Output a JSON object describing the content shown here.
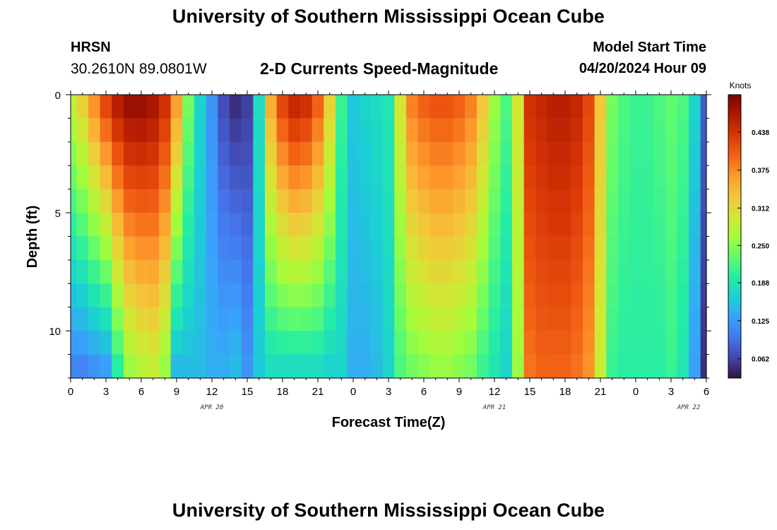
{
  "header": {
    "main_title": "University of Southern Mississippi Ocean Cube",
    "station": "HRSN",
    "coords": "30.2610N  89.0801W",
    "subtitle": "2-D Currents Speed-Magnitude",
    "model_label": "Model Start Time",
    "model_time": "04/20/2024 Hour 09"
  },
  "footer": {
    "main_title": "University of Southern Mississippi Ocean Cube"
  },
  "chart_data": {
    "type": "heatmap",
    "title": "2-D Currents Speed-Magnitude",
    "xlabel": "Forecast Time(Z)",
    "ylabel": "Depth (ft)",
    "x_range_hours": [
      0,
      54
    ],
    "y_range_ft": [
      0,
      12
    ],
    "x_ticks": [
      {
        "hour": 0,
        "label": "0"
      },
      {
        "hour": 3,
        "label": "3"
      },
      {
        "hour": 6,
        "label": "6"
      },
      {
        "hour": 9,
        "label": "9"
      },
      {
        "hour": 12,
        "label": "12"
      },
      {
        "hour": 15,
        "label": "15"
      },
      {
        "hour": 18,
        "label": "18"
      },
      {
        "hour": 21,
        "label": "21"
      },
      {
        "hour": 24,
        "label": "0"
      },
      {
        "hour": 27,
        "label": "3"
      },
      {
        "hour": 30,
        "label": "6"
      },
      {
        "hour": 33,
        "label": "9"
      },
      {
        "hour": 36,
        "label": "12"
      },
      {
        "hour": 39,
        "label": "15"
      },
      {
        "hour": 42,
        "label": "18"
      },
      {
        "hour": 45,
        "label": "21"
      },
      {
        "hour": 48,
        "label": "0"
      },
      {
        "hour": 51,
        "label": "3"
      },
      {
        "hour": 54,
        "label": "6"
      }
    ],
    "date_labels": [
      {
        "hour": 12,
        "label": "APR 20"
      },
      {
        "hour": 36,
        "label": "APR 21"
      },
      {
        "hour": 52.5,
        "label": "APR 22"
      }
    ],
    "y_ticks": [
      {
        "depth": 0,
        "label": "0"
      },
      {
        "depth": 5,
        "label": "5"
      },
      {
        "depth": 10,
        "label": "10"
      }
    ],
    "colorbar": {
      "title": "Knots",
      "min": 0.03,
      "max": 0.5,
      "ticks": [
        0.062,
        0.125,
        0.188,
        0.25,
        0.312,
        0.375,
        0.438
      ],
      "tick_labels": [
        "0.062",
        "0.125",
        "0.188",
        "0.250",
        "0.312",
        "0.375",
        "0.438"
      ],
      "colors": [
        "#30123b",
        "#4145ab",
        "#4675ed",
        "#39a2fc",
        "#1bcfd4",
        "#24eca6",
        "#61fc6c",
        "#a4fc3b",
        "#d1e834",
        "#f3c63a",
        "#fe9b2d",
        "#f36315",
        "#d93806",
        "#b11901",
        "#7a0402"
      ]
    },
    "rows_depth_ft": [
      0.5,
      1.5,
      2.5,
      3.5,
      4.5,
      5.5,
      6.5,
      7.5,
      8.5,
      9.5,
      10.5,
      11.5
    ],
    "speed_profile_knots": {
      "hours": [
        0,
        1,
        2,
        3,
        4,
        5,
        6,
        7,
        8,
        9,
        10,
        11,
        12,
        13,
        14,
        15,
        16,
        17,
        18,
        19,
        20,
        21,
        22,
        23,
        24,
        25,
        26,
        27,
        28,
        29,
        30,
        31,
        32,
        33,
        34,
        35,
        36,
        37,
        38,
        39,
        40,
        41,
        42,
        43,
        44,
        45,
        46,
        47,
        48,
        49,
        50,
        51,
        52,
        53,
        54
      ],
      "surface": [
        0.28,
        0.32,
        0.37,
        0.42,
        0.46,
        0.48,
        0.48,
        0.47,
        0.44,
        0.36,
        0.24,
        0.17,
        0.12,
        0.07,
        0.05,
        0.06,
        0.18,
        0.35,
        0.42,
        0.45,
        0.44,
        0.4,
        0.32,
        0.21,
        0.16,
        0.17,
        0.18,
        0.19,
        0.3,
        0.38,
        0.4,
        0.41,
        0.41,
        0.4,
        0.38,
        0.33,
        0.26,
        0.22,
        0.3,
        0.44,
        0.45,
        0.46,
        0.46,
        0.45,
        0.42,
        0.33,
        0.24,
        0.22,
        0.21,
        0.21,
        0.22,
        0.23,
        0.22,
        0.17,
        0.08
      ],
      "bottom": [
        0.11,
        0.11,
        0.12,
        0.13,
        0.2,
        0.26,
        0.28,
        0.29,
        0.26,
        0.15,
        0.15,
        0.15,
        0.14,
        0.14,
        0.15,
        0.12,
        0.16,
        0.18,
        0.18,
        0.18,
        0.18,
        0.18,
        0.17,
        0.17,
        0.14,
        0.14,
        0.15,
        0.17,
        0.22,
        0.24,
        0.25,
        0.26,
        0.26,
        0.25,
        0.24,
        0.21,
        0.19,
        0.17,
        0.26,
        0.39,
        0.4,
        0.4,
        0.4,
        0.39,
        0.37,
        0.29,
        0.21,
        0.2,
        0.2,
        0.2,
        0.2,
        0.21,
        0.19,
        0.13,
        0.05
      ]
    }
  }
}
